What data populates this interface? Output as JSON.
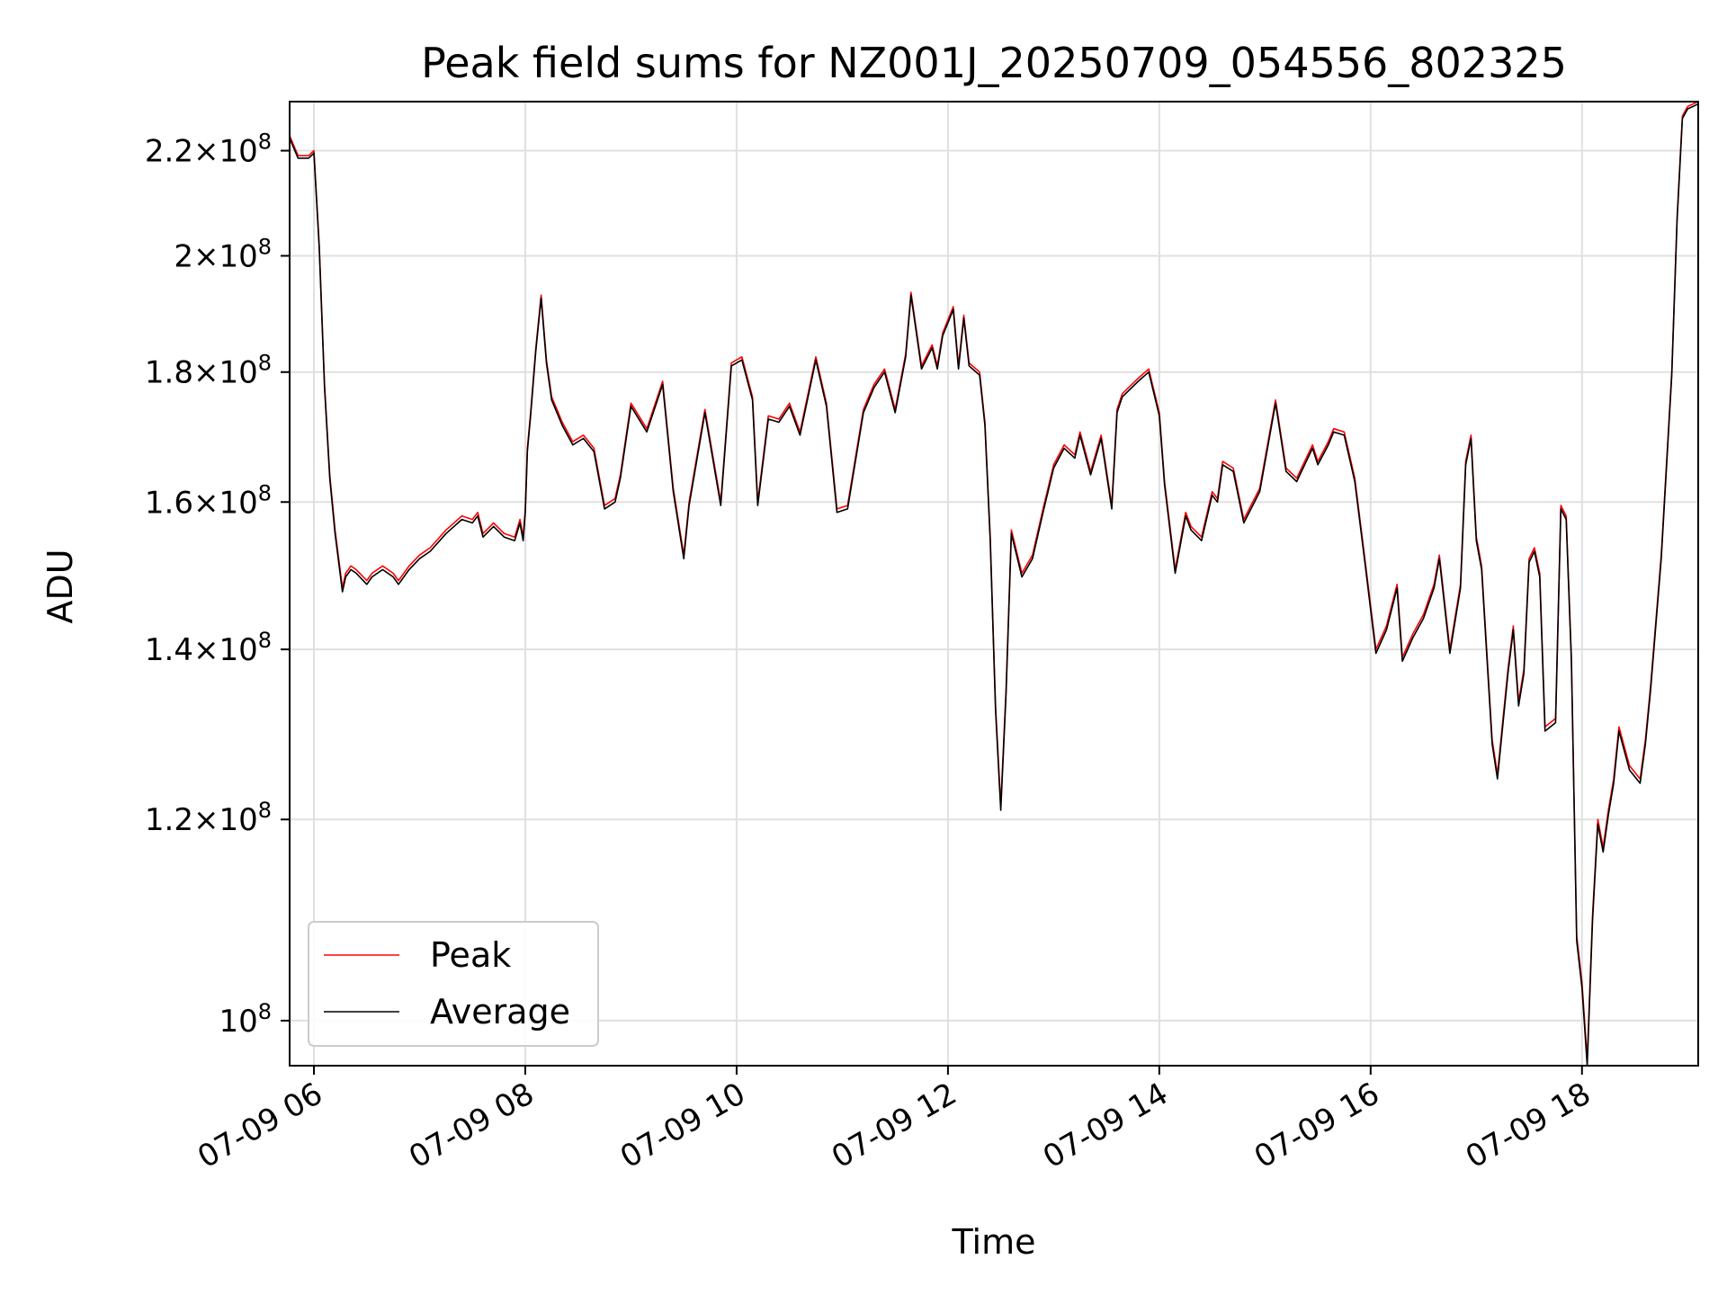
{
  "chart_data": {
    "type": "line",
    "title": "Peak field sums for NZ001J_20250709_054556_802325",
    "xlabel": "Time",
    "ylabel": "ADU",
    "yscale": "log",
    "grid": true,
    "legend_position": "lower-left",
    "xlim": [
      5.77,
      19.1
    ],
    "ylim": [
      96000000,
      230000000
    ],
    "x_ticks": [
      {
        "value": 6,
        "label": "07-09 06"
      },
      {
        "value": 8,
        "label": "07-09 08"
      },
      {
        "value": 10,
        "label": "07-09 10"
      },
      {
        "value": 12,
        "label": "07-09 12"
      },
      {
        "value": 14,
        "label": "07-09 14"
      },
      {
        "value": 16,
        "label": "07-09 16"
      },
      {
        "value": 18,
        "label": "07-09 18"
      }
    ],
    "y_ticks": [
      {
        "value": 100000000,
        "mantissa": "",
        "exp": "8"
      },
      {
        "value": 120000000,
        "mantissa": "1.2",
        "exp": "8"
      },
      {
        "value": 140000000,
        "mantissa": "1.4",
        "exp": "8"
      },
      {
        "value": 160000000,
        "mantissa": "1.6",
        "exp": "8"
      },
      {
        "value": 180000000,
        "mantissa": "1.8",
        "exp": "8"
      },
      {
        "value": 200000000,
        "mantissa": "2",
        "exp": "8"
      },
      {
        "value": 220000000,
        "mantissa": "2.2",
        "exp": "8"
      }
    ],
    "x": [
      5.77,
      5.85,
      5.95,
      6.0,
      6.05,
      6.1,
      6.15,
      6.2,
      6.27,
      6.3,
      6.35,
      6.4,
      6.5,
      6.55,
      6.65,
      6.75,
      6.8,
      6.9,
      7.0,
      7.1,
      7.25,
      7.4,
      7.5,
      7.55,
      7.6,
      7.7,
      7.8,
      7.9,
      7.95,
      7.98,
      8.0,
      8.02,
      8.05,
      8.1,
      8.15,
      8.2,
      8.25,
      8.3,
      8.35,
      8.45,
      8.55,
      8.65,
      8.75,
      8.85,
      8.9,
      9.0,
      9.15,
      9.3,
      9.4,
      9.5,
      9.55,
      9.7,
      9.85,
      9.95,
      10.05,
      10.15,
      10.2,
      10.3,
      10.4,
      10.5,
      10.6,
      10.75,
      10.85,
      10.95,
      11.05,
      11.2,
      11.3,
      11.4,
      11.5,
      11.6,
      11.65,
      11.75,
      11.85,
      11.9,
      11.95,
      12.05,
      12.1,
      12.15,
      12.2,
      12.3,
      12.35,
      12.4,
      12.45,
      12.5,
      12.55,
      12.6,
      12.7,
      12.8,
      12.9,
      13.0,
      13.1,
      13.2,
      13.25,
      13.35,
      13.45,
      13.55,
      13.6,
      13.65,
      13.8,
      13.9,
      14.0,
      14.05,
      14.15,
      14.25,
      14.3,
      14.4,
      14.5,
      14.55,
      14.6,
      14.7,
      14.8,
      14.95,
      15.1,
      15.2,
      15.3,
      15.45,
      15.5,
      15.6,
      15.65,
      15.75,
      15.85,
      15.95,
      16.05,
      16.15,
      16.25,
      16.3,
      16.4,
      16.5,
      16.6,
      16.65,
      16.75,
      16.85,
      16.9,
      16.95,
      17.0,
      17.05,
      17.15,
      17.2,
      17.3,
      17.35,
      17.4,
      17.45,
      17.5,
      17.55,
      17.6,
      17.65,
      17.75,
      17.8,
      17.85,
      17.9,
      17.95,
      18.0,
      18.05,
      18.1,
      18.15,
      18.2,
      18.25,
      18.3,
      18.35,
      18.45,
      18.55,
      18.6,
      18.65,
      18.75,
      18.85,
      18.9,
      18.95,
      19.0,
      19.1
    ],
    "series": [
      {
        "name": "Peak",
        "color": "#ff0000",
        "values": [
          223000000,
          219000000,
          219000000,
          220000000,
          202000000,
          178000000,
          164000000,
          156000000,
          148000000,
          150000000,
          151000000,
          150500000,
          149000000,
          150000000,
          151000000,
          150000000,
          149000000,
          151000000,
          152500000,
          153500000,
          156000000,
          158000000,
          157500000,
          158500000,
          155500000,
          157000000,
          155500000,
          155000000,
          157500000,
          155000000,
          159000000,
          168000000,
          173500000,
          184000000,
          193000000,
          182000000,
          176000000,
          174000000,
          172000000,
          169000000,
          170000000,
          168000000,
          159500000,
          160500000,
          164000000,
          175000000,
          171000000,
          178500000,
          162000000,
          152500000,
          160000000,
          174000000,
          160000000,
          181500000,
          182500000,
          176000000,
          160000000,
          173000000,
          172500000,
          175000000,
          170500000,
          182500000,
          175000000,
          159000000,
          159500000,
          174000000,
          178000000,
          180500000,
          174000000,
          183000000,
          193500000,
          181000000,
          184500000,
          181000000,
          186500000,
          191000000,
          181000000,
          189500000,
          181500000,
          180000000,
          172000000,
          155000000,
          133000000,
          121500000,
          135000000,
          156000000,
          150000000,
          152500000,
          159000000,
          165500000,
          168500000,
          167000000,
          170500000,
          164500000,
          170000000,
          159500000,
          174000000,
          176500000,
          179000000,
          180500000,
          173500000,
          163000000,
          150500000,
          158500000,
          156500000,
          155000000,
          161500000,
          160500000,
          166000000,
          165000000,
          157500000,
          162000000,
          175500000,
          165000000,
          163500000,
          168500000,
          166000000,
          169000000,
          171000000,
          170500000,
          163500000,
          151500000,
          140000000,
          143000000,
          148500000,
          139000000,
          142000000,
          144500000,
          148500000,
          152500000,
          140000000,
          148500000,
          166000000,
          170000000,
          155000000,
          151000000,
          129000000,
          125000000,
          137500000,
          143000000,
          133500000,
          137500000,
          152000000,
          153500000,
          150000000,
          130500000,
          131500000,
          159500000,
          158000000,
          139000000,
          108000000,
          103500000,
          96500000,
          110000000,
          120000000,
          117000000,
          121000000,
          124500000,
          130500000,
          126000000,
          124500000,
          129000000,
          135500000,
          152500000,
          180000000,
          207000000,
          227000000,
          229000000,
          230000000
        ]
      },
      {
        "name": "Average",
        "color": "#000000",
        "values": [
          222500000,
          218500000,
          218500000,
          219500000,
          201500000,
          177500000,
          163500000,
          155500000,
          147500000,
          149500000,
          150500000,
          150000000,
          148500000,
          149500000,
          150500000,
          149500000,
          148500000,
          150500000,
          152000000,
          153000000,
          155500000,
          157500000,
          157000000,
          158000000,
          155000000,
          156500000,
          155000000,
          154500000,
          157000000,
          154500000,
          158500000,
          167500000,
          173000000,
          183500000,
          192500000,
          181500000,
          175500000,
          173500000,
          171500000,
          168500000,
          169500000,
          167500000,
          159000000,
          160000000,
          163500000,
          174500000,
          170500000,
          178000000,
          161500000,
          152000000,
          159500000,
          173500000,
          159500000,
          181000000,
          182000000,
          175500000,
          159500000,
          172500000,
          172000000,
          174500000,
          170000000,
          182000000,
          174500000,
          158500000,
          159000000,
          173500000,
          177500000,
          180000000,
          173500000,
          182500000,
          193000000,
          180500000,
          184000000,
          180500000,
          186000000,
          190500000,
          180500000,
          189000000,
          181000000,
          179500000,
          171500000,
          154500000,
          132500000,
          121000000,
          134500000,
          155500000,
          149500000,
          152000000,
          158500000,
          165000000,
          168000000,
          166500000,
          170000000,
          164000000,
          169500000,
          159000000,
          173500000,
          176000000,
          178500000,
          180000000,
          173000000,
          162500000,
          150000000,
          158000000,
          156000000,
          154500000,
          161000000,
          160000000,
          165500000,
          164500000,
          157000000,
          161500000,
          175000000,
          164500000,
          163000000,
          168000000,
          165500000,
          168500000,
          170500000,
          170000000,
          163000000,
          151000000,
          139500000,
          142500000,
          148000000,
          138500000,
          141500000,
          144000000,
          148000000,
          152000000,
          139500000,
          148000000,
          165500000,
          169500000,
          154500000,
          150500000,
          128500000,
          124500000,
          137000000,
          142500000,
          133000000,
          137000000,
          151500000,
          153000000,
          149500000,
          130000000,
          131000000,
          159000000,
          157500000,
          138500000,
          107500000,
          103000000,
          96000000,
          109500000,
          119500000,
          116500000,
          120500000,
          124000000,
          130000000,
          125500000,
          124000000,
          128500000,
          135000000,
          152000000,
          179500000,
          206500000,
          226500000,
          228500000,
          229500000
        ]
      }
    ]
  }
}
